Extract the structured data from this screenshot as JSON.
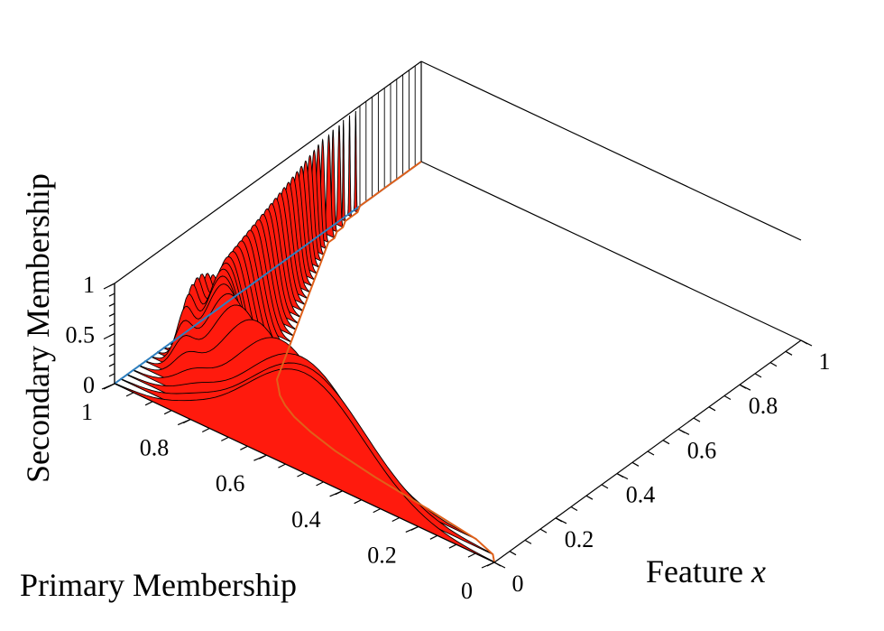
{
  "chart_data": {
    "type": "surface",
    "title": "",
    "xlabel": "Feature x",
    "xlabel_main": "Feature ",
    "xlabel_var": "x",
    "ylabel": "Primary Membership",
    "zlabel": "Secondary Membership",
    "xlim": [
      0,
      1
    ],
    "ylim": [
      0,
      1
    ],
    "zlim": [
      0,
      1
    ],
    "x_ticks": [
      "0",
      "0.2",
      "0.4",
      "0.6",
      "0.8",
      "1"
    ],
    "y_ticks": [
      "0",
      "0.2",
      "0.4",
      "0.6",
      "0.8",
      "1"
    ],
    "z_ticks": [
      "0",
      "0.5",
      "1"
    ],
    "slices": {
      "x": [
        0.0,
        0.02,
        0.04,
        0.06,
        0.08,
        0.1,
        0.12,
        0.14,
        0.16,
        0.18,
        0.2,
        0.22,
        0.24,
        0.26,
        0.28,
        0.3,
        0.32,
        0.34,
        0.36,
        0.38,
        0.4,
        0.42,
        0.44,
        0.46,
        0.48,
        0.5,
        0.52,
        0.54,
        0.56,
        0.58,
        0.6,
        0.62,
        0.64,
        0.66,
        0.68,
        0.7,
        0.72,
        0.74,
        0.76,
        0.78,
        0.8,
        0.82,
        0.84,
        0.86,
        0.88,
        0.9,
        0.92,
        0.94,
        0.96,
        0.98,
        1.0
      ],
      "upper_membership": [
        1.0,
        1.0,
        1.0,
        1.0,
        1.0,
        1.0,
        1.0,
        1.0,
        1.0,
        1.0,
        1.0,
        1.0,
        1.0,
        1.0,
        1.0,
        1.0,
        1.0,
        1.0,
        1.0,
        1.0,
        1.0,
        1.0,
        1.0,
        1.0,
        1.0,
        1.0,
        1.0,
        1.0,
        1.0,
        1.0,
        1.0,
        1.0,
        1.0,
        1.0,
        1.0,
        1.0,
        1.0,
        1.0,
        1.0,
        1.0,
        1.0,
        1.0,
        1.0,
        1.0,
        1.0,
        1.0,
        1.0,
        1.0,
        1.0,
        1.0,
        1.0
      ],
      "lower_membership": [
        0.0,
        0.02,
        0.08,
        0.22,
        0.38,
        0.5,
        0.58,
        0.64,
        0.68,
        0.71,
        0.73,
        0.75,
        0.76,
        0.77,
        0.78,
        0.79,
        0.8,
        0.81,
        0.82,
        0.83,
        0.84,
        0.85,
        0.86,
        0.87,
        0.88,
        0.89,
        0.9,
        0.91,
        0.92,
        0.93,
        0.94,
        0.95,
        0.96,
        0.97,
        0.97,
        0.98,
        0.98,
        0.99,
        0.99,
        0.99,
        1.0,
        1.0,
        1.0,
        1.0,
        1.0,
        1.0,
        1.0,
        1.0,
        1.0,
        1.0,
        1.0
      ],
      "peak_height": [
        1.0,
        1.0,
        1.0,
        1.0,
        1.0,
        1.0,
        1.0,
        1.0,
        1.0,
        1.0,
        1.0,
        1.0,
        1.0,
        1.0,
        1.0,
        1.0,
        1.0,
        1.0,
        1.0,
        1.0,
        1.0,
        1.0,
        1.0,
        1.0,
        1.0,
        1.0,
        1.0,
        1.0,
        1.0,
        1.0,
        1.0,
        1.0,
        1.0,
        1.0,
        1.0,
        1.0,
        1.0,
        1.0,
        1.0,
        1.0,
        1.0,
        1.0,
        1.0,
        1.0,
        1.0,
        1.0,
        1.0,
        1.0,
        1.0,
        1.0,
        1.0
      ]
    },
    "grid": false,
    "colors": {
      "surface": "#ff1a0d",
      "upper_curve": "#2e7fbf",
      "lower_curve": "#e0601a",
      "edge": "#000000"
    }
  }
}
